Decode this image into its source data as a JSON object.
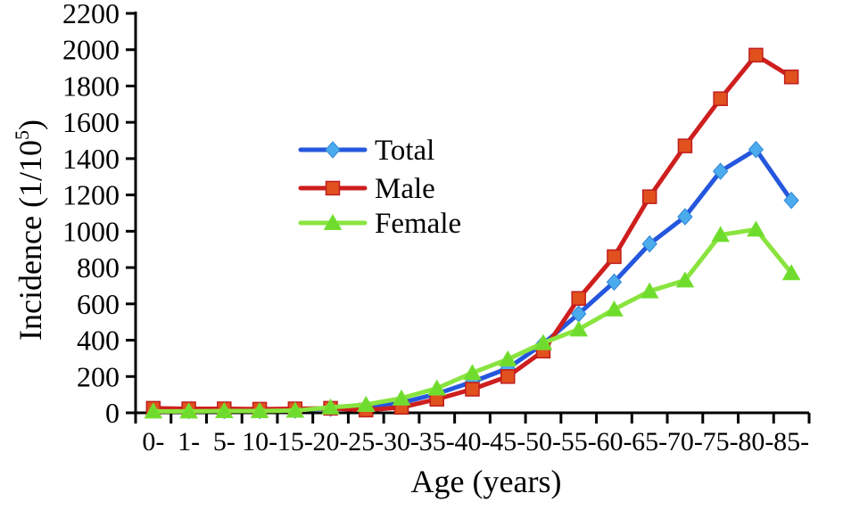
{
  "figure": {
    "background": "#ffffff",
    "axis_color": "#000000"
  },
  "chart_data": {
    "type": "line",
    "title": "",
    "xlabel": "Age (years)",
    "ylabel": "Incidence (1/10⁵)",
    "ylabel_parts": {
      "base": "Incidence (1/10",
      "superscript": "5",
      "close": ")"
    },
    "categories": [
      "0-",
      "1-",
      "5-",
      "10-",
      "15-",
      "20-",
      "25-",
      "30-",
      "35-",
      "40-",
      "45-",
      "50-",
      "55-",
      "60-",
      "65-",
      "70-",
      "75-",
      "80-",
      "85-"
    ],
    "ylim": [
      0,
      2200
    ],
    "ytick_step": 200,
    "grid": false,
    "legend_position": "inside-left-middle",
    "series": [
      {
        "name": "Total",
        "marker": "diamond",
        "line_color": "#2457dd",
        "marker_color": "#4cabec",
        "marker_stroke": "#2f86d8",
        "values": [
          15,
          12,
          12,
          12,
          15,
          25,
          30,
          55,
          105,
          170,
          245,
          380,
          545,
          720,
          930,
          1080,
          1330,
          1450,
          1170
        ]
      },
      {
        "name": "Male",
        "marker": "square",
        "line_color": "#ce1e1e",
        "marker_color": "#e0511e",
        "marker_stroke": "#bf1d1d",
        "values": [
          25,
          22,
          22,
          20,
          22,
          25,
          15,
          30,
          75,
          130,
          200,
          340,
          630,
          860,
          1190,
          1470,
          1730,
          1970,
          1850
        ]
      },
      {
        "name": "Female",
        "marker": "triangle",
        "line_color": "#8ae43f",
        "marker_color": "#6fdc2d",
        "marker_stroke": "#76df33",
        "values": [
          8,
          8,
          10,
          10,
          12,
          30,
          45,
          80,
          135,
          220,
          295,
          385,
          460,
          570,
          670,
          730,
          980,
          1010,
          770
        ]
      }
    ]
  }
}
